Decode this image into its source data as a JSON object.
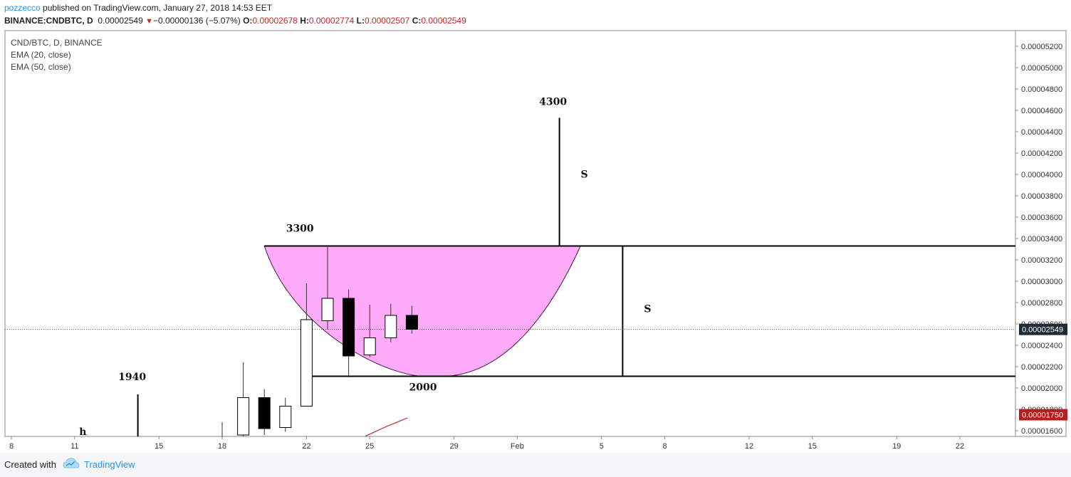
{
  "header": {
    "author": "pozzecco",
    "published": "published on TradingView.com, January 27, 2018 14:53 EET",
    "symbol": "BINANCE:CNDBTC, D",
    "last": "0.00002549",
    "change": "−0.00000136 (−5.07%)",
    "o_label": "O:",
    "o_val": "0.00002678",
    "h_label": "H:",
    "h_val": "0.00002774",
    "l_label": "L:",
    "l_val": "0.00002507",
    "c_label": "C:",
    "c_val": "0.00002549",
    "down_color": "#c62828"
  },
  "legend": {
    "pair": "CND/BTC, D, BINANCE",
    "ema20": "EMA (20, close)",
    "ema50": "EMA (50, close)"
  },
  "footer": {
    "created": "Created with",
    "brand": "TradingView"
  },
  "chart_data": {
    "type": "candlestick",
    "x_ticks": [
      "8",
      "11",
      "15",
      "18",
      "22",
      "25",
      "29",
      "Feb",
      "5",
      "8",
      "12",
      "15",
      "19",
      "22"
    ],
    "y_ticks": [
      "0.00001600",
      "0.00001800",
      "0.00002000",
      "0.00002200",
      "0.00002400",
      "0.00002600",
      "0.00002800",
      "0.00003000",
      "0.00003200",
      "0.00003400",
      "0.00003600",
      "0.00003800",
      "0.00004000",
      "0.00004200",
      "0.00004400",
      "0.00004600",
      "0.00004800",
      "0.00005000",
      "0.00005200"
    ],
    "ylim": [
      1.55e-05,
      5.35e-05
    ],
    "candles": [
      {
        "date": "Jan 18",
        "o": 1.49e-05,
        "h": 1.68e-05,
        "l": 1.45e-05,
        "c": 1.5e-05
      },
      {
        "date": "Jan 19",
        "o": 1.56e-05,
        "h": 2.24e-05,
        "l": 1.5e-05,
        "c": 1.91e-05
      },
      {
        "date": "Jan 20",
        "o": 1.91e-05,
        "h": 1.99e-05,
        "l": 1.56e-05,
        "c": 1.62e-05
      },
      {
        "date": "Jan 21",
        "o": 1.63e-05,
        "h": 1.91e-05,
        "l": 1.59e-05,
        "c": 1.83e-05
      },
      {
        "date": "Jan 22",
        "o": 1.83e-05,
        "h": 2.98e-05,
        "l": 1.83e-05,
        "c": 2.64e-05
      },
      {
        "date": "Jan 23",
        "o": 2.63e-05,
        "h": 3.32e-05,
        "l": 2.55e-05,
        "c": 2.84e-05
      },
      {
        "date": "Jan 24",
        "o": 2.84e-05,
        "h": 2.92e-05,
        "l": 2.1e-05,
        "c": 2.3e-05
      },
      {
        "date": "Jan 25",
        "o": 2.31e-05,
        "h": 2.78e-05,
        "l": 2.29e-05,
        "c": 2.47e-05
      },
      {
        "date": "Jan 26",
        "o": 2.47e-05,
        "h": 2.79e-05,
        "l": 2.43e-05,
        "c": 2.68e-05
      },
      {
        "date": "Jan 27",
        "o": 2.68e-05,
        "h": 2.77e-05,
        "l": 2.51e-05,
        "c": 2.55e-05
      }
    ],
    "ema20": [
      {
        "date": "Jan 25",
        "v": 1.55e-05
      },
      {
        "date": "Jan 26",
        "v": 1.64e-05
      },
      {
        "date": "Jan 27",
        "v": 1.72e-05
      }
    ],
    "price_labels": [
      {
        "value": 2.549e-05,
        "text": "0.00002549"
      },
      {
        "value": 1.75e-05,
        "text": "0.00001750"
      }
    ],
    "annotations": {
      "left_h": "h",
      "left_h_date": "Jan 12",
      "left_peak": "1940",
      "left_peak_date": "Jan 14",
      "cup_top": "3300",
      "cup_bottom": "2000",
      "target": "4300",
      "s_upper": "S",
      "s_right": "S"
    },
    "cup": {
      "left_date": "Jan 20",
      "right_date": "Feb 4",
      "bottom_date": "Jan 28",
      "top": 3.33e-05,
      "bottom": 2.11e-05
    },
    "lines": {
      "resistance": 3.33e-05,
      "support": 2.11e-05,
      "support_from": "Jan 22",
      "target_date": "Feb 3",
      "target_top": 4.53e-05,
      "measure_date": "Feb 6"
    },
    "colors": {
      "cup_fill": "#ff9cf9",
      "up": "#ffffff",
      "down": "#000000",
      "last_label": "#1e2a36",
      "ema_label": "#b71c1c",
      "ema_line": "#b71c1c"
    }
  }
}
